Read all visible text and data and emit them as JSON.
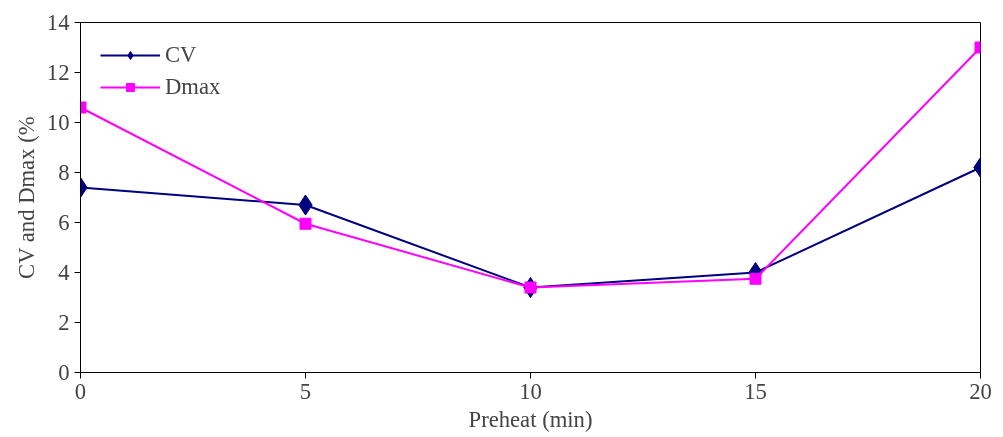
{
  "chart_data": {
    "type": "line",
    "xlabel": "Preheat (min)",
    "ylabel": "CV and Dmax (%",
    "x": [
      0,
      5,
      10,
      15,
      20
    ],
    "series": [
      {
        "name": "CV",
        "color": "#000080",
        "marker": "diamond",
        "values": [
          7.4,
          6.7,
          3.4,
          4.0,
          8.2
        ]
      },
      {
        "name": "Dmax",
        "color": "#ff00ff",
        "marker": "square",
        "values": [
          10.6,
          5.95,
          3.4,
          3.75,
          13.0
        ]
      }
    ],
    "xlim": [
      0,
      20
    ],
    "xticks": [
      0,
      5,
      10,
      15,
      20
    ],
    "ylim": [
      0,
      14
    ],
    "yticks": [
      0,
      2,
      4,
      6,
      8,
      10,
      12,
      14
    ],
    "grid": false,
    "legend": "top left",
    "line_style": "solid"
  }
}
